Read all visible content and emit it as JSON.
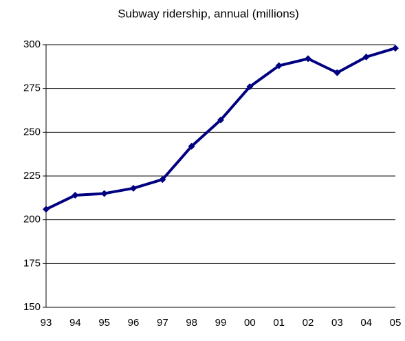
{
  "chart_data": {
    "type": "line",
    "title": "Subway ridership, annual (millions)",
    "categories": [
      "93",
      "94",
      "95",
      "96",
      "97",
      "98",
      "99",
      "00",
      "01",
      "02",
      "03",
      "04",
      "05"
    ],
    "series": [
      {
        "name": "Subway ridership",
        "color": "#000080",
        "values": [
          206,
          214,
          215,
          218,
          223,
          242,
          257,
          276,
          288,
          292,
          284,
          293,
          298
        ]
      }
    ],
    "ylim": [
      150,
      300
    ],
    "yticks": [
      150,
      175,
      200,
      225,
      250,
      275,
      300
    ],
    "grid": true
  }
}
